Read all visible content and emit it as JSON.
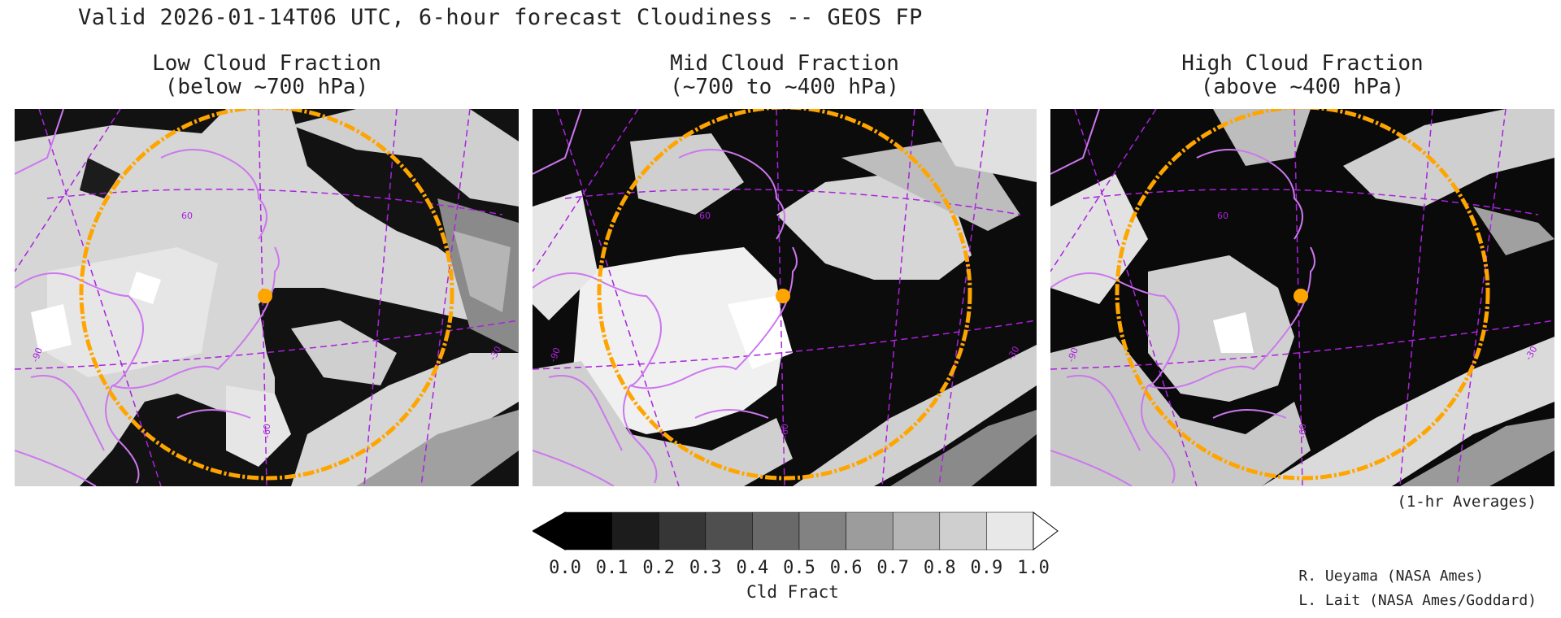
{
  "header": {
    "title": "Valid 2026-01-14T06 UTC, 6-hour forecast Cloudiness -- GEOS FP"
  },
  "panels": [
    {
      "title_line1": "Low Cloud Fraction",
      "title_line2": "(below ~700 hPa)",
      "grid_label_lat": "60",
      "grid_label_lon_left": "-90",
      "grid_label_lon_bottom": "-60",
      "grid_label_lon_right": "-30"
    },
    {
      "title_line1": "Mid Cloud Fraction",
      "title_line2": "(~700 to ~400 hPa)",
      "grid_label_lat": "60",
      "grid_label_lon_left": "-90",
      "grid_label_lon_bottom": "-60",
      "grid_label_lon_right": "-30"
    },
    {
      "title_line1": "High Cloud Fraction",
      "title_line2": "(above ~400 hPa)",
      "grid_label_lat": "60",
      "grid_label_lon_left": "-90",
      "grid_label_lon_bottom": "-60",
      "grid_label_lon_right": "-30"
    }
  ],
  "note": "(1-hr Averages)",
  "colorbar": {
    "ticks": [
      "0.0",
      "0.1",
      "0.2",
      "0.3",
      "0.4",
      "0.5",
      "0.6",
      "0.7",
      "0.8",
      "0.9",
      "1.0"
    ],
    "unit_label": "Cld Fract",
    "colors": [
      "#000000",
      "#1c1c1c",
      "#363636",
      "#4f4f4f",
      "#696969",
      "#828282",
      "#9c9c9c",
      "#b5b5b5",
      "#cfcfcf",
      "#e8e8e8"
    ],
    "under_color": "#000000",
    "over_color": "#ffffff"
  },
  "credits": {
    "line1": "R. Ueyama (NASA Ames)",
    "line2": "L. Lait (NASA Ames/Goddard)"
  },
  "map_style": {
    "coastline_color": "#cc77ee",
    "gridline_color": "#aa22dd",
    "range_ring_color": "#ffa500",
    "site_marker_color": "#ffa500"
  }
}
